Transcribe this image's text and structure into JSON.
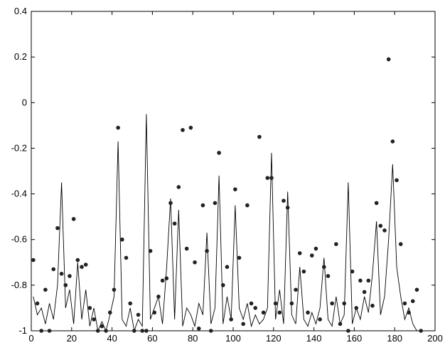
{
  "chart_data": {
    "type": "line",
    "x": [
      1,
      3,
      5,
      7,
      9,
      11,
      13,
      15,
      17,
      19,
      21,
      23,
      25,
      27,
      29,
      31,
      33,
      35,
      37,
      39,
      41,
      43,
      45,
      47,
      49,
      51,
      53,
      55,
      57,
      59,
      61,
      63,
      65,
      67,
      69,
      71,
      73,
      75,
      77,
      79,
      81,
      83,
      85,
      87,
      89,
      91,
      93,
      95,
      97,
      99,
      101,
      103,
      105,
      107,
      109,
      111,
      113,
      115,
      117,
      119,
      121,
      123,
      125,
      127,
      129,
      131,
      133,
      135,
      137,
      139,
      141,
      143,
      145,
      147,
      149,
      151,
      153,
      155,
      157,
      159,
      161,
      163,
      165,
      167,
      169,
      171,
      173,
      175,
      177,
      179,
      181,
      183,
      185,
      187,
      189,
      191,
      193
    ],
    "series": [
      {
        "style": "line",
        "color": "#000000",
        "values": [
          -0.85,
          -0.93,
          -0.9,
          -0.97,
          -0.88,
          -0.95,
          -0.8,
          -0.35,
          -0.9,
          -0.82,
          -0.97,
          -0.7,
          -0.95,
          -0.82,
          -0.98,
          -0.9,
          -1,
          -0.96,
          -1,
          -0.93,
          -0.85,
          -0.17,
          -0.95,
          -0.98,
          -0.9,
          -1,
          -0.95,
          -0.98,
          -0.05,
          -0.95,
          -0.9,
          -0.85,
          -0.97,
          -0.73,
          -0.42,
          -0.95,
          -0.47,
          -0.98,
          -0.9,
          -0.93,
          -0.98,
          -0.88,
          -0.93,
          -0.57,
          -0.97,
          -0.9,
          -0.32,
          -0.97,
          -0.85,
          -0.95,
          -0.45,
          -0.9,
          -0.95,
          -0.88,
          -0.98,
          -0.93,
          -0.97,
          -0.95,
          -0.9,
          -0.22,
          -0.95,
          -0.82,
          -0.97,
          -0.39,
          -0.93,
          -0.97,
          -0.72,
          -0.95,
          -0.98,
          -0.92,
          -0.97,
          -0.9,
          -0.68,
          -0.95,
          -0.98,
          -0.85,
          -0.97,
          -0.93,
          -0.35,
          -0.97,
          -0.9,
          -0.95,
          -0.85,
          -0.92,
          -0.75,
          -0.52,
          -0.93,
          -0.85,
          -0.6,
          -0.27,
          -0.72,
          -0.85,
          -0.95,
          -0.9,
          -0.97,
          -1,
          -1
        ]
      },
      {
        "style": "markers",
        "color": "#222222",
        "values": [
          -0.69,
          -0.88,
          -1,
          -0.82,
          -1,
          -0.73,
          -0.55,
          -0.75,
          -0.8,
          -0.76,
          -0.51,
          -0.69,
          -0.72,
          -0.71,
          -0.9,
          -0.95,
          -1,
          -0.98,
          -1,
          -0.92,
          -0.82,
          -0.11,
          -0.6,
          -0.68,
          -0.88,
          -1,
          -0.93,
          -1,
          -1,
          -0.65,
          -0.92,
          -0.85,
          -0.78,
          -0.77,
          -0.44,
          -0.53,
          -0.37,
          -0.12,
          -0.64,
          -0.11,
          -0.7,
          -0.99,
          -0.45,
          -0.65,
          -1,
          -0.44,
          -0.22,
          -0.8,
          -0.72,
          -0.95,
          -0.38,
          -0.68,
          -0.97,
          -0.45,
          -0.88,
          -0.9,
          -0.15,
          -0.92,
          -0.33,
          -0.33,
          -0.88,
          -0.92,
          -0.43,
          -0.46,
          -0.88,
          -0.82,
          -0.66,
          -0.74,
          -0.92,
          -0.67,
          -0.64,
          -0.95,
          -0.72,
          -0.76,
          -0.88,
          -0.62,
          -0.97,
          -0.88,
          -1,
          -0.74,
          -0.9,
          -0.78,
          -0.83,
          -0.78,
          -0.89,
          -0.44,
          -0.54,
          -0.56,
          0.19,
          -0.17,
          -0.34,
          -0.62,
          -0.88,
          -0.92,
          -0.87,
          -0.82,
          -1
        ]
      }
    ],
    "xlim": [
      0,
      200
    ],
    "xticks": [
      0,
      20,
      40,
      60,
      80,
      100,
      120,
      140,
      160,
      180,
      200
    ],
    "ylim": [
      -1,
      0.4
    ],
    "yticks": [
      -1,
      -0.8,
      -0.6,
      -0.4,
      -0.2,
      0,
      0.2,
      0.4
    ]
  }
}
